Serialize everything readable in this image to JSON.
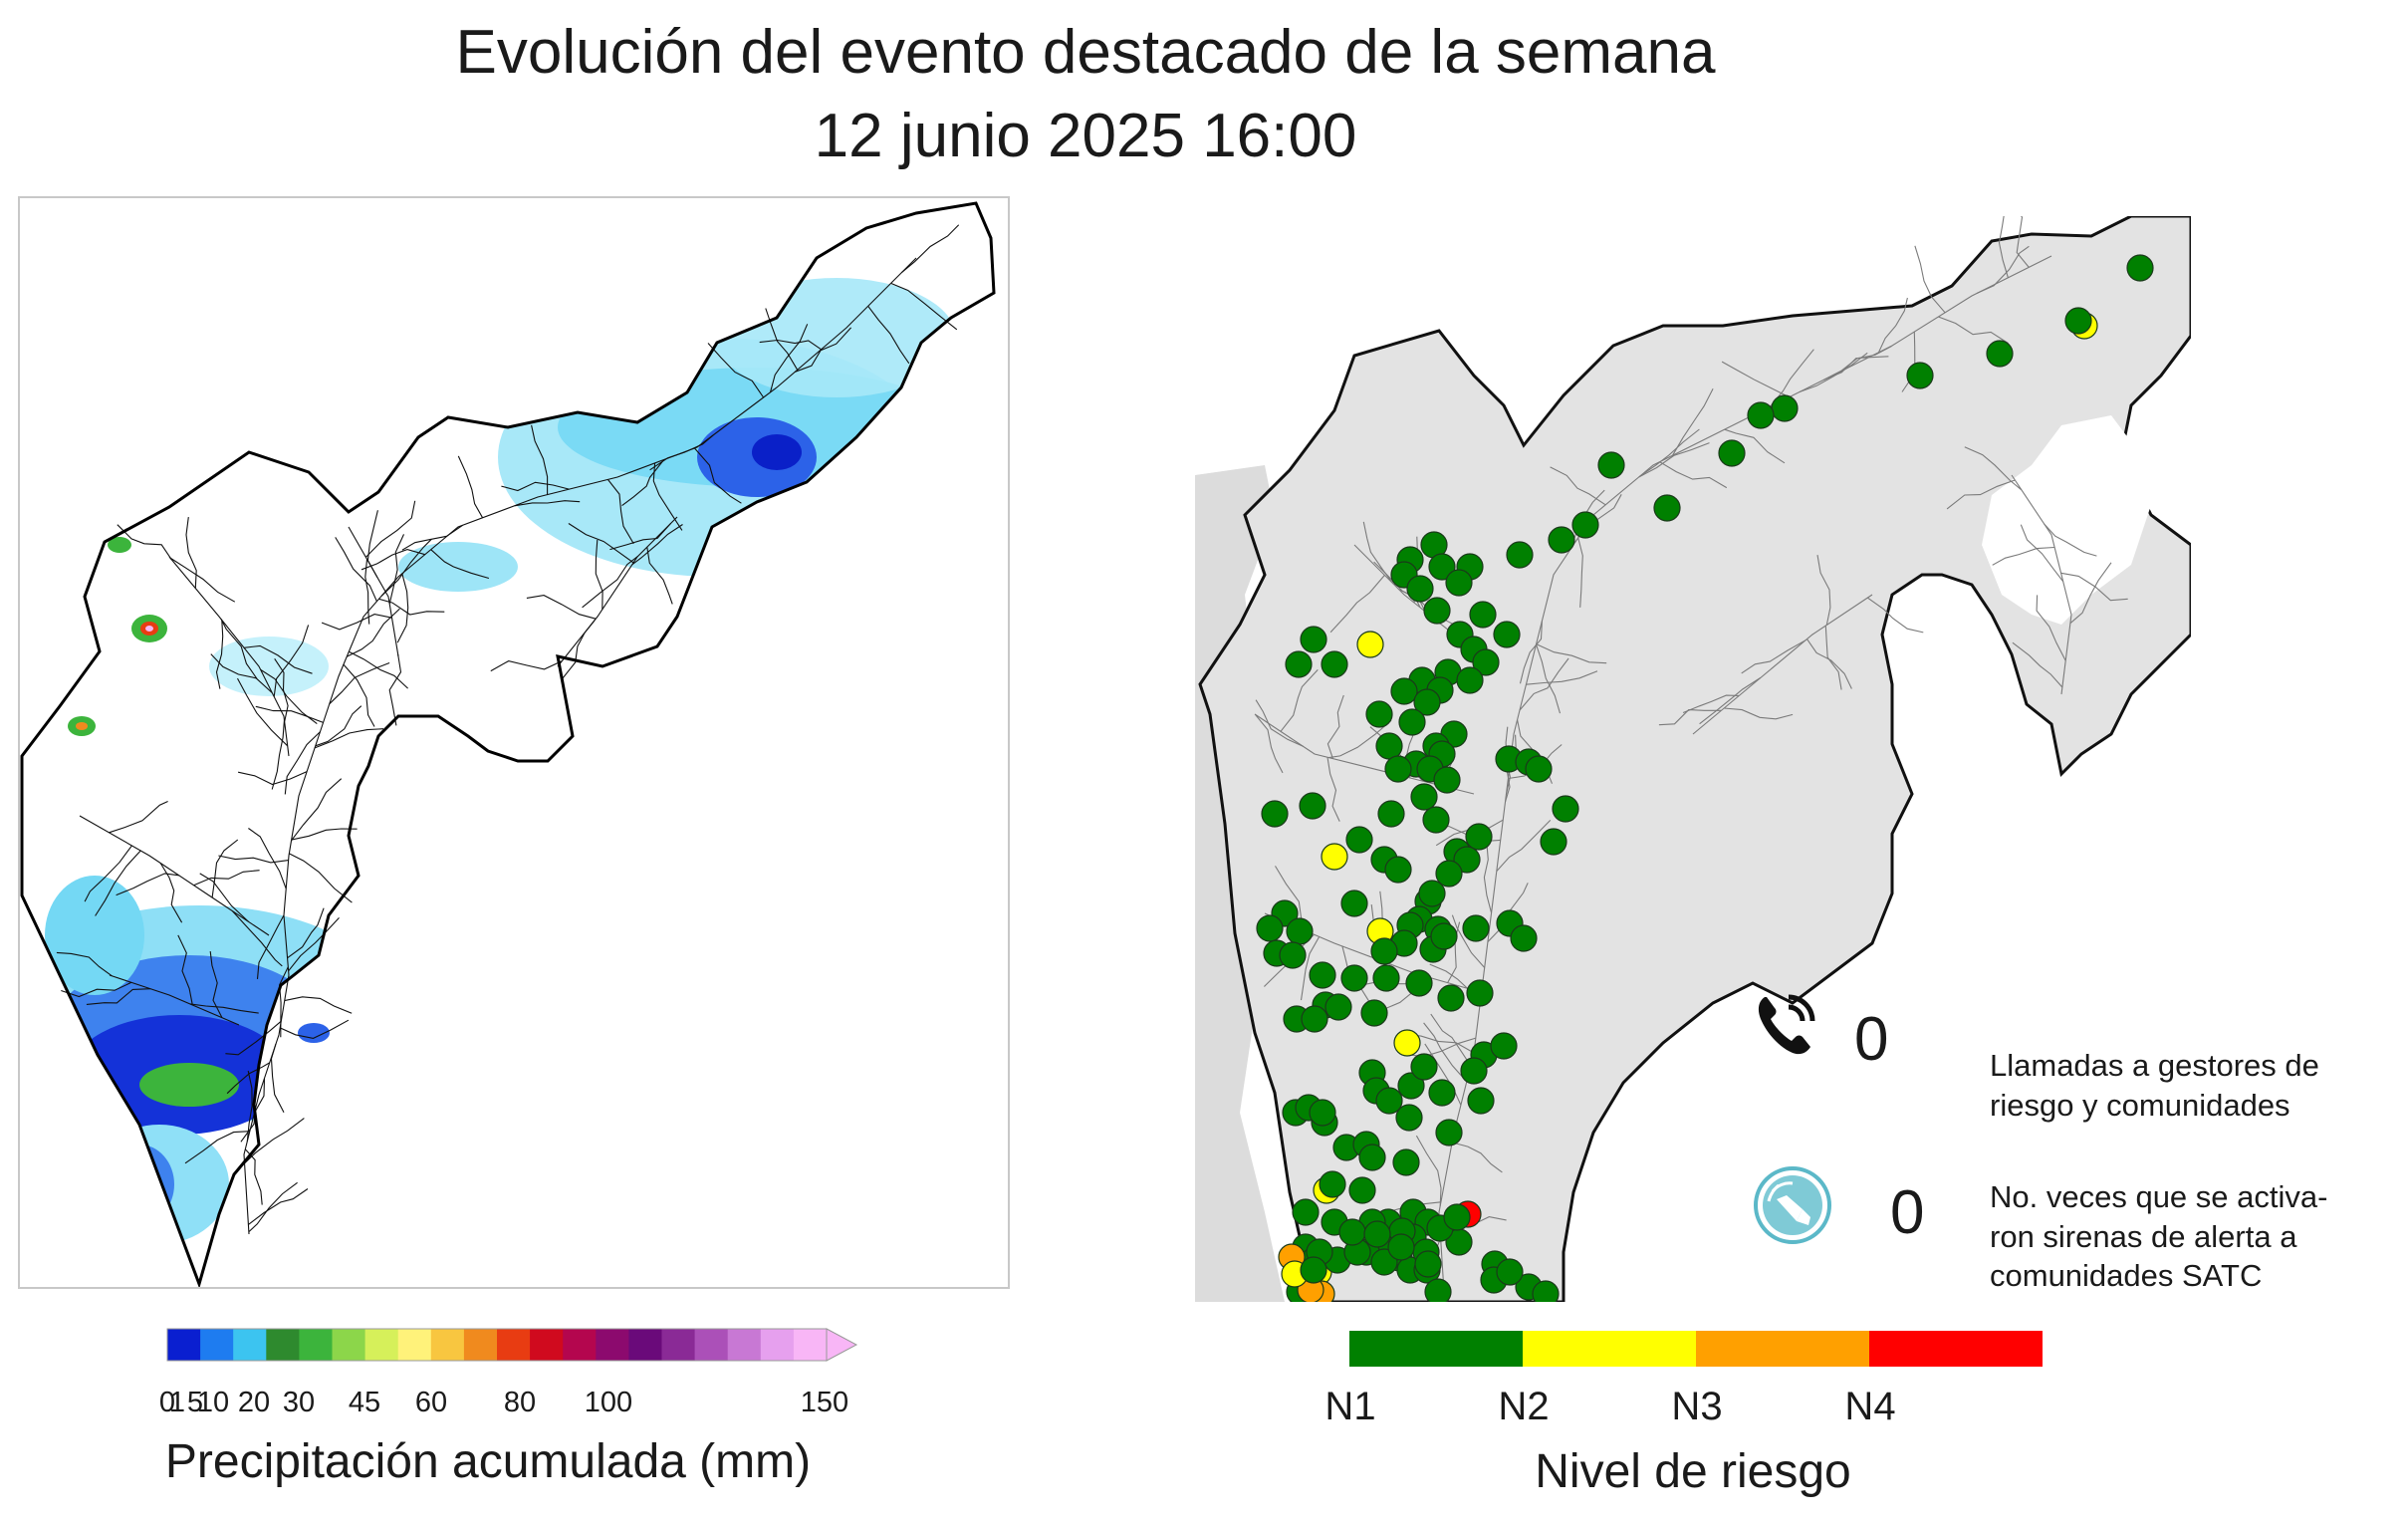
{
  "title": {
    "line1": "Evolución del evento destacado de la semana",
    "line2": "12 junio 2025 16:00"
  },
  "precip_legend": {
    "title": "Precipitación acumulada (mm)",
    "ticks": [
      "0",
      "1",
      "5",
      "10",
      "20",
      "30",
      "45",
      "60",
      "80",
      "100",
      "150"
    ],
    "colors": [
      "#0a1fd0",
      "#1e7cf0",
      "#3cc4f0",
      "#2e8a2e",
      "#3cb43c",
      "#8cd64a",
      "#d6f05a",
      "#fff27a",
      "#f8c640",
      "#f08a1e",
      "#e83c12",
      "#d00a1e",
      "#b4064e",
      "#8c0a6e",
      "#6a0a7a",
      "#8a2a96",
      "#ab50b8",
      "#c878d4",
      "#e6a0ee",
      "#f8b6f6"
    ]
  },
  "risk_legend": {
    "title": "Nivel de riesgo",
    "levels": [
      {
        "label": "N1",
        "color": "#008000"
      },
      {
        "label": "N2",
        "color": "#ffff00"
      },
      {
        "label": "N3",
        "color": "#ffa000"
      },
      {
        "label": "N4",
        "color": "#ff0000"
      }
    ]
  },
  "stats": {
    "calls": {
      "value": "0",
      "label_line1": "Llamadas a gestores de",
      "label_line2": "riesgo y comunidades",
      "icon": "phone-icon"
    },
    "sirens": {
      "value": "0",
      "label_line1": "No. veces que se activa-",
      "label_line2": "ron sirenas de alerta a",
      "label_line3": "comunidades SATC",
      "icon": "siren-icon"
    }
  }
}
